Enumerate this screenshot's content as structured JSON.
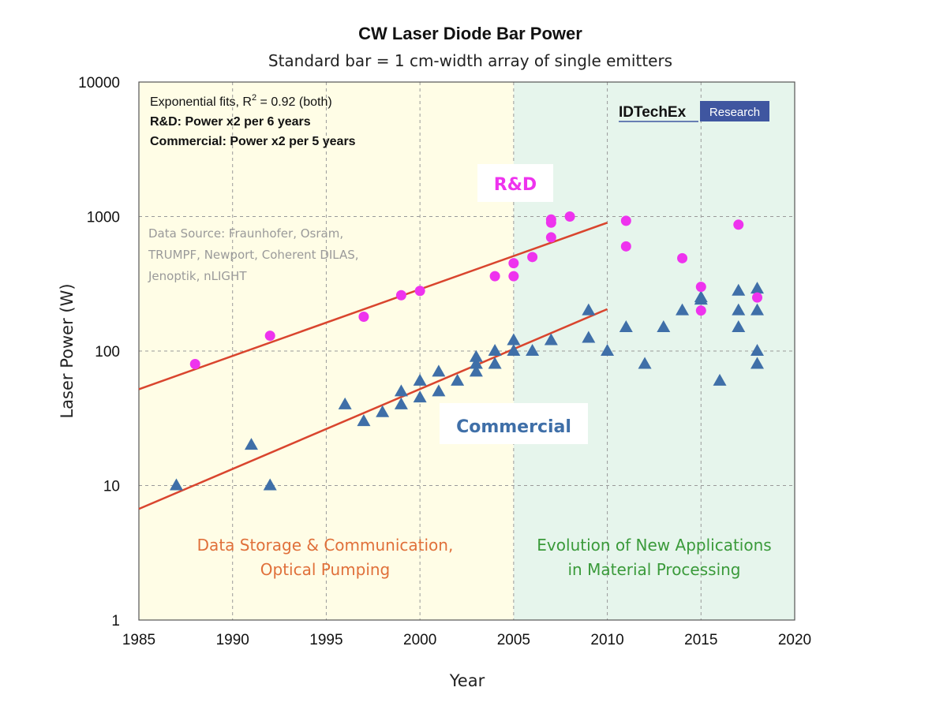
{
  "chart_data": {
    "type": "scatter",
    "title": "CW Laser Diode Bar Power",
    "subtitle": "Standard bar = 1 cm-width array of single emitters",
    "xlabel": "Year",
    "ylabel": "Laser Power (W)",
    "xlim": [
      1985,
      2020
    ],
    "ylim": [
      1,
      10000
    ],
    "y_scale": "log",
    "x_ticks": [
      "1985",
      "1990",
      "1995",
      "2000",
      "2005",
      "2010",
      "2015",
      "2020"
    ],
    "y_ticks": [
      "1",
      "10",
      "100",
      "1000",
      "10000"
    ],
    "grid": true,
    "notes": {
      "fit_line1_prefix": "Exponential fits, R",
      "fit_line1_sup": "2",
      "fit_line1_suffix": " = 0.92 (both)",
      "fit_line2": "R&D: Power x2 per 6 years",
      "fit_line3": "Commercial: Power x2 per 5 years"
    },
    "data_source": [
      "Data Source: Fraunhofer, Osram,",
      "TRUMPF, Newport, Coherent DILAS,",
      "Jenoptik, nLIGHT"
    ],
    "logo": {
      "name": "IDTechEx",
      "tag": "Research"
    },
    "regions": [
      {
        "label_lines": [
          "Data Storage & Communication,",
          "Optical Pumping"
        ],
        "x_range": [
          1985,
          2005
        ],
        "fill": "#fffde6",
        "text_color": "#e0703a"
      },
      {
        "label_lines": [
          "Evolution of New Applications",
          "in Material Processing"
        ],
        "x_range": [
          2005,
          2020
        ],
        "fill": "#e6f5ec",
        "text_color": "#3a9a3a"
      }
    ],
    "series": [
      {
        "name": "R&D",
        "marker": "circle",
        "color": "#ee33ee",
        "points": [
          [
            1988,
            80
          ],
          [
            1992,
            130
          ],
          [
            1997,
            180
          ],
          [
            1999,
            260
          ],
          [
            2000,
            280
          ],
          [
            2004,
            360
          ],
          [
            2005,
            360
          ],
          [
            2005,
            450
          ],
          [
            2006,
            500
          ],
          [
            2007,
            700
          ],
          [
            2007,
            900
          ],
          [
            2007,
            950
          ],
          [
            2008,
            1000
          ],
          [
            2011,
            600
          ],
          [
            2011,
            930
          ],
          [
            2014,
            490
          ],
          [
            2015,
            200
          ],
          [
            2015,
            300
          ],
          [
            2017,
            870
          ],
          [
            2018,
            250
          ]
        ],
        "fit": {
          "x": [
            1985,
            2010
          ],
          "y": [
            52,
            900
          ],
          "color": "#d9452e"
        }
      },
      {
        "name": "Commercial",
        "marker": "triangle",
        "color": "#3f6fa8",
        "points": [
          [
            1987,
            10
          ],
          [
            1991,
            20
          ],
          [
            1992,
            10
          ],
          [
            1996,
            40
          ],
          [
            1997,
            30
          ],
          [
            1998,
            35
          ],
          [
            1999,
            40
          ],
          [
            1999,
            50
          ],
          [
            2000,
            45
          ],
          [
            2000,
            60
          ],
          [
            2001,
            50
          ],
          [
            2001,
            70
          ],
          [
            2002,
            60
          ],
          [
            2003,
            70
          ],
          [
            2003,
            80
          ],
          [
            2003,
            90
          ],
          [
            2004,
            80
          ],
          [
            2004,
            100
          ],
          [
            2005,
            100
          ],
          [
            2005,
            120
          ],
          [
            2006,
            100
          ],
          [
            2007,
            120
          ],
          [
            2009,
            125
          ],
          [
            2009,
            200
          ],
          [
            2010,
            100
          ],
          [
            2011,
            150
          ],
          [
            2012,
            80
          ],
          [
            2013,
            150
          ],
          [
            2014,
            200
          ],
          [
            2015,
            240
          ],
          [
            2015,
            250
          ],
          [
            2016,
            60
          ],
          [
            2017,
            150
          ],
          [
            2017,
            200
          ],
          [
            2017,
            280
          ],
          [
            2018,
            80
          ],
          [
            2018,
            100
          ],
          [
            2018,
            200
          ],
          [
            2018,
            290
          ]
        ],
        "fit": {
          "x": [
            1985,
            2010
          ],
          "y": [
            6.7,
            205
          ],
          "color": "#d9452e"
        }
      }
    ]
  }
}
